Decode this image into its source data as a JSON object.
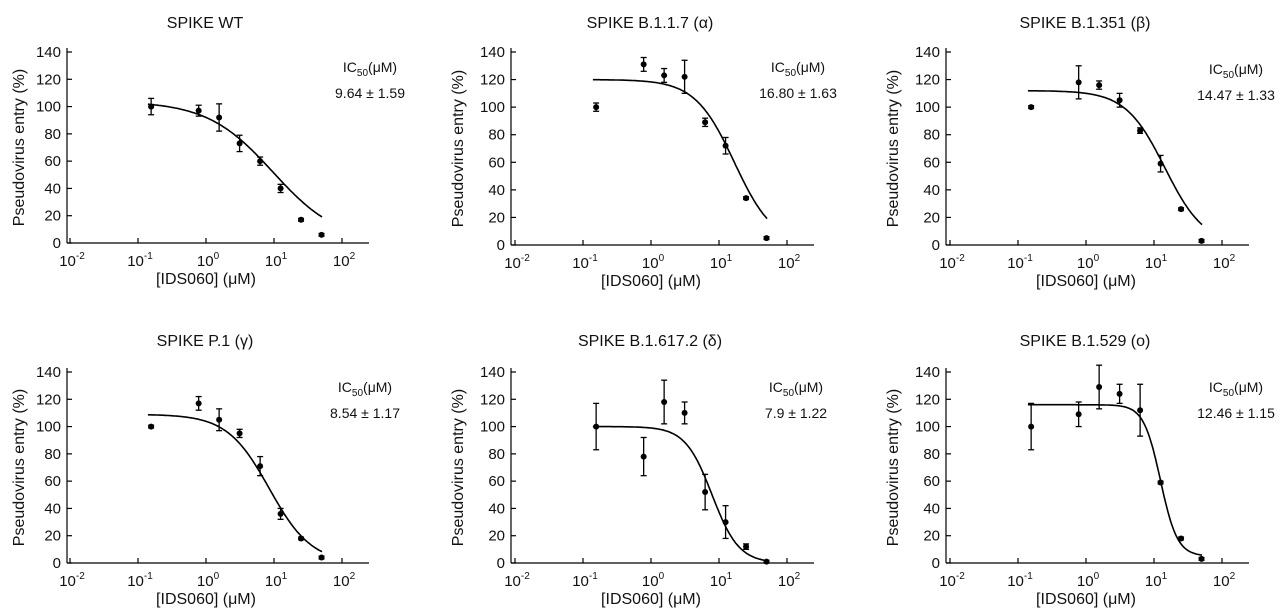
{
  "chart_data": [
    {
      "type": "scatter",
      "title": "SPIKE WT",
      "xlabel": "[IDS060] (μM)",
      "ylabel": "Pseudovirus entry (%)",
      "xscale": "log",
      "xlim": [
        0.01,
        250
      ],
      "ylim": [
        0,
        140
      ],
      "yticks": [
        0,
        20,
        40,
        60,
        80,
        100,
        120,
        140
      ],
      "xticks": [
        {
          "base": "10",
          "exp": "-2"
        },
        {
          "base": "10",
          "exp": "-1"
        },
        {
          "base": "10",
          "exp": "0"
        },
        {
          "base": "10",
          "exp": "1"
        },
        {
          "base": "10",
          "exp": "2"
        }
      ],
      "ic50_label": {
        "main": "IC",
        "sub": "50",
        "unit": "(μM)"
      },
      "ic50_value": "9.64  ± 1.59",
      "points": [
        {
          "x": 0.156,
          "y": 100,
          "err": 6
        },
        {
          "x": 0.78,
          "y": 97,
          "err": 4
        },
        {
          "x": 1.56,
          "y": 92,
          "err": 10
        },
        {
          "x": 3.12,
          "y": 73,
          "err": 6
        },
        {
          "x": 6.25,
          "y": 60,
          "err": 3
        },
        {
          "x": 12.5,
          "y": 40,
          "err": 3
        },
        {
          "x": 25,
          "y": 17,
          "err": 1
        },
        {
          "x": 50,
          "y": 6,
          "err": 1
        }
      ],
      "fit": {
        "top": 104,
        "bottom": 0,
        "ic50": 9.64,
        "hill": 0.9
      }
    },
    {
      "type": "scatter",
      "title": "SPIKE B.1.1.7 (α)",
      "xlabel": "[IDS060] (μM)",
      "ylabel": "Pseudovirus entry (%)",
      "xscale": "log",
      "xlim": [
        0.01,
        250
      ],
      "ylim": [
        0,
        140
      ],
      "yticks": [
        0,
        20,
        40,
        60,
        80,
        100,
        120,
        140
      ],
      "xticks": [
        {
          "base": "10",
          "exp": "-2"
        },
        {
          "base": "10",
          "exp": "-1"
        },
        {
          "base": "10",
          "exp": "0"
        },
        {
          "base": "10",
          "exp": "1"
        },
        {
          "base": "10",
          "exp": "2"
        }
      ],
      "ic50_label": {
        "main": "IC",
        "sub": "50",
        "unit": "(μM)"
      },
      "ic50_value": "16.80 ± 1.63",
      "points": [
        {
          "x": 0.156,
          "y": 100,
          "err": 3
        },
        {
          "x": 0.78,
          "y": 131,
          "err": 5
        },
        {
          "x": 1.56,
          "y": 123,
          "err": 5
        },
        {
          "x": 3.12,
          "y": 122,
          "err": 12
        },
        {
          "x": 6.25,
          "y": 89,
          "err": 3
        },
        {
          "x": 12.5,
          "y": 72,
          "err": 6
        },
        {
          "x": 25,
          "y": 34,
          "err": 1
        },
        {
          "x": 50,
          "y": 5,
          "err": 1
        }
      ],
      "fit": {
        "top": 120,
        "bottom": 0,
        "ic50": 16.8,
        "hill": 1.5
      }
    },
    {
      "type": "scatter",
      "title": "SPIKE B.1.351 (β)",
      "xlabel": "[IDS060] (μM)",
      "ylabel": "Pseudovirus entry (%)",
      "xscale": "log",
      "xlim": [
        0.01,
        250
      ],
      "ylim": [
        0,
        140
      ],
      "yticks": [
        0,
        20,
        40,
        60,
        80,
        100,
        120,
        140
      ],
      "xticks": [
        {
          "base": "10",
          "exp": "-2"
        },
        {
          "base": "10",
          "exp": "-1"
        },
        {
          "base": "10",
          "exp": "0"
        },
        {
          "base": "10",
          "exp": "1"
        },
        {
          "base": "10",
          "exp": "2"
        }
      ],
      "ic50_label": {
        "main": "IC",
        "sub": "50",
        "unit": "(μM)"
      },
      "ic50_value": "14.47 ± 1.33",
      "points": [
        {
          "x": 0.156,
          "y": 100,
          "err": 1
        },
        {
          "x": 0.78,
          "y": 118,
          "err": 12
        },
        {
          "x": 1.56,
          "y": 116,
          "err": 3
        },
        {
          "x": 3.12,
          "y": 105,
          "err": 5
        },
        {
          "x": 6.25,
          "y": 83,
          "err": 2
        },
        {
          "x": 12.5,
          "y": 59,
          "err": 6
        },
        {
          "x": 25,
          "y": 26,
          "err": 1
        },
        {
          "x": 50,
          "y": 3,
          "err": 1
        }
      ],
      "fit": {
        "top": 112,
        "bottom": 0,
        "ic50": 14.47,
        "hill": 1.5
      }
    },
    {
      "type": "scatter",
      "title": "SPIKE P.1 (γ)",
      "xlabel": "[IDS060] (μM)",
      "ylabel": "Pseudovirus entry (%)",
      "xscale": "log",
      "xlim": [
        0.01,
        250
      ],
      "ylim": [
        0,
        140
      ],
      "yticks": [
        0,
        20,
        40,
        60,
        80,
        100,
        120,
        140
      ],
      "xticks": [
        {
          "base": "10",
          "exp": "-2"
        },
        {
          "base": "10",
          "exp": "-1"
        },
        {
          "base": "10",
          "exp": "0"
        },
        {
          "base": "10",
          "exp": "1"
        },
        {
          "base": "10",
          "exp": "2"
        }
      ],
      "ic50_label": {
        "main": "IC",
        "sub": "50",
        "unit": "(μM)"
      },
      "ic50_value": "8.54 ± 1.17",
      "points": [
        {
          "x": 0.156,
          "y": 100,
          "err": 1
        },
        {
          "x": 0.78,
          "y": 117,
          "err": 5
        },
        {
          "x": 1.56,
          "y": 105,
          "err": 8
        },
        {
          "x": 3.12,
          "y": 95,
          "err": 3
        },
        {
          "x": 6.25,
          "y": 71,
          "err": 7
        },
        {
          "x": 12.5,
          "y": 36,
          "err": 4
        },
        {
          "x": 25,
          "y": 18,
          "err": 1
        },
        {
          "x": 50,
          "y": 4,
          "err": 1
        }
      ],
      "fit": {
        "top": 109,
        "bottom": 0,
        "ic50": 8.54,
        "hill": 1.4
      }
    },
    {
      "type": "scatter",
      "title": "SPIKE B.1.617.2 (δ)",
      "xlabel": "[IDS060] (μM)",
      "ylabel": "Pseudovirus entry (%)",
      "xscale": "log",
      "xlim": [
        0.01,
        250
      ],
      "ylim": [
        0,
        140
      ],
      "yticks": [
        0,
        20,
        40,
        60,
        80,
        100,
        120,
        140
      ],
      "xticks": [
        {
          "base": "10",
          "exp": "-2"
        },
        {
          "base": "10",
          "exp": "-1"
        },
        {
          "base": "10",
          "exp": "0"
        },
        {
          "base": "10",
          "exp": "1"
        },
        {
          "base": "10",
          "exp": "2"
        }
      ],
      "ic50_label": {
        "main": "IC",
        "sub": "50",
        "unit": "(μM)"
      },
      "ic50_value": "7.9 ± 1.22",
      "points": [
        {
          "x": 0.156,
          "y": 100,
          "err": 17
        },
        {
          "x": 0.78,
          "y": 78,
          "err": 14
        },
        {
          "x": 1.56,
          "y": 118,
          "err": 16
        },
        {
          "x": 3.12,
          "y": 110,
          "err": 8
        },
        {
          "x": 6.25,
          "y": 52,
          "err": 13
        },
        {
          "x": 12.5,
          "y": 30,
          "err": 12
        },
        {
          "x": 25,
          "y": 12,
          "err": 2
        },
        {
          "x": 50,
          "y": 1,
          "err": 1
        }
      ],
      "fit": {
        "top": 100,
        "bottom": 0,
        "ic50": 7.9,
        "hill": 2.2
      }
    },
    {
      "type": "scatter",
      "title": "SPIKE B.1.529 (ο)",
      "xlabel": "[IDS060] (μM)",
      "ylabel": "Pseudovirus entry (%)",
      "xscale": "log",
      "xlim": [
        0.01,
        250
      ],
      "ylim": [
        0,
        140
      ],
      "yticks": [
        0,
        20,
        40,
        60,
        80,
        100,
        120,
        140
      ],
      "xticks": [
        {
          "base": "10",
          "exp": "-2"
        },
        {
          "base": "10",
          "exp": "-1"
        },
        {
          "base": "10",
          "exp": "0"
        },
        {
          "base": "10",
          "exp": "1"
        },
        {
          "base": "10",
          "exp": "2"
        }
      ],
      "ic50_label": {
        "main": "IC",
        "sub": "50",
        "unit": "(μM)"
      },
      "ic50_value": "12.46 ± 1.15",
      "points": [
        {
          "x": 0.156,
          "y": 100,
          "err": 17
        },
        {
          "x": 0.78,
          "y": 109,
          "err": 9
        },
        {
          "x": 1.56,
          "y": 129,
          "err": 16
        },
        {
          "x": 3.12,
          "y": 124,
          "err": 7
        },
        {
          "x": 6.25,
          "y": 112,
          "err": 19
        },
        {
          "x": 12.5,
          "y": 59,
          "err": 1
        },
        {
          "x": 25,
          "y": 18,
          "err": 1
        },
        {
          "x": 50,
          "y": 3,
          "err": 1
        }
      ],
      "fit": {
        "top": 116,
        "bottom": 5,
        "ic50": 12.46,
        "hill": 3.5
      }
    }
  ]
}
